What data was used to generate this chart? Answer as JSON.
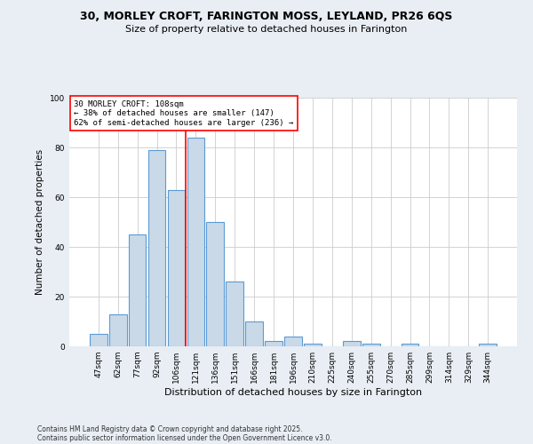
{
  "title1": "30, MORLEY CROFT, FARINGTON MOSS, LEYLAND, PR26 6QS",
  "title2": "Size of property relative to detached houses in Farington",
  "xlabel": "Distribution of detached houses by size in Farington",
  "ylabel": "Number of detached properties",
  "categories": [
    "47sqm",
    "62sqm",
    "77sqm",
    "92sqm",
    "106sqm",
    "121sqm",
    "136sqm",
    "151sqm",
    "166sqm",
    "181sqm",
    "196sqm",
    "210sqm",
    "225sqm",
    "240sqm",
    "255sqm",
    "270sqm",
    "285sqm",
    "299sqm",
    "314sqm",
    "329sqm",
    "344sqm"
  ],
  "values": [
    5,
    13,
    45,
    79,
    63,
    84,
    50,
    26,
    10,
    2,
    4,
    1,
    0,
    2,
    1,
    0,
    1,
    0,
    0,
    0,
    1
  ],
  "bar_color": "#c9d9e8",
  "bar_edge_color": "#5b9bd5",
  "ylim": [
    0,
    100
  ],
  "yticks": [
    0,
    20,
    40,
    60,
    80,
    100
  ],
  "property_line_x": 4.5,
  "annotation_text": "30 MORLEY CROFT: 108sqm\n← 38% of detached houses are smaller (147)\n62% of semi-detached houses are larger (236) →",
  "footer1": "Contains HM Land Registry data © Crown copyright and database right 2025.",
  "footer2": "Contains public sector information licensed under the Open Government Licence v3.0.",
  "bg_color": "#e8eef4",
  "plot_bg_color": "#ffffff"
}
